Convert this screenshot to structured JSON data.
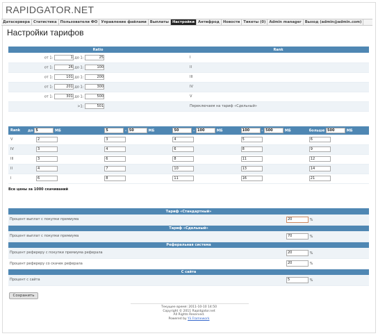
{
  "logo": "RAPIDGATOR.NET",
  "nav": [
    {
      "label": "Датасервера",
      "active": false
    },
    {
      "label": "Статистика",
      "active": false
    },
    {
      "label": "Пользователи ФО",
      "active": false
    },
    {
      "label": "Управление файлами",
      "active": false
    },
    {
      "label": "Выплаты",
      "active": false
    },
    {
      "label": "Настройки",
      "active": true
    },
    {
      "label": "Антифрод",
      "active": false
    },
    {
      "label": "Новости",
      "active": false
    },
    {
      "label": "Тикеты (0)",
      "active": false
    },
    {
      "label": "Admin manager",
      "active": false
    },
    {
      "label": "Выход (admin@admin.com)",
      "active": false
    }
  ],
  "page_title": "Настройки тарифов",
  "ratio": {
    "col_ratio": "Ratio",
    "col_rank": "Rank",
    "from_label": "от 1:",
    "to_label": "до 1:",
    "gt_label": ">1:",
    "rows": [
      {
        "from": "1",
        "to": "25",
        "rank": "I"
      },
      {
        "from": "26",
        "to": "100",
        "rank": "II"
      },
      {
        "from": "101",
        "to": "200",
        "rank": "III"
      },
      {
        "from": "201",
        "to": "300",
        "rank": "IV"
      },
      {
        "from": "301",
        "to": "500",
        "rank": "V"
      }
    ],
    "last_value": "501",
    "last_text": "Переключаем на тариф «Сдельный»"
  },
  "sizes": {
    "rank_label": "Rank",
    "to_label": "до",
    "mb": "МБ",
    "dash": "-",
    "more_label": "больше",
    "ranges": [
      {
        "from": "",
        "to": "5"
      },
      {
        "from": "5",
        "to": "50"
      },
      {
        "from": "50",
        "to": "100"
      },
      {
        "from": "100",
        "to": "500"
      },
      {
        "from": "",
        "to": "500"
      }
    ],
    "rows": [
      {
        "rank": "V",
        "values": [
          "2",
          "3",
          "4",
          "5",
          "6"
        ]
      },
      {
        "rank": "IV",
        "values": [
          "3",
          "4",
          "6",
          "8",
          "9"
        ]
      },
      {
        "rank": "III",
        "values": [
          "3",
          "6",
          "8",
          "11",
          "12"
        ]
      },
      {
        "rank": "II",
        "values": [
          "4",
          "7",
          "10",
          "13",
          "14"
        ]
      },
      {
        "rank": "I",
        "values": [
          "6",
          "8",
          "11",
          "16",
          "21"
        ]
      }
    ]
  },
  "note": "Все цены за 1000 скачиваний",
  "settings": {
    "pct": "%",
    "sections": [
      {
        "title": "Тариф «Стандартный»",
        "rows": [
          {
            "label": "Процент выплат с покупки премиума",
            "value": "20",
            "focus": true
          }
        ]
      },
      {
        "title": "Тариф «Сдельный»",
        "rows": [
          {
            "label": "Процент выплат с покупки премиума",
            "value": "70",
            "focus": false
          }
        ]
      },
      {
        "title": "Реферальная система",
        "rows": [
          {
            "label": "Процент рефереру с покупки премиума реферала",
            "value": "20",
            "focus": false
          },
          {
            "label": "Процент рефереру со скачек реферала",
            "value": "20",
            "focus": false
          }
        ]
      },
      {
        "title": "С сайта",
        "rows": [
          {
            "label": "Процент с сайта",
            "value": "5",
            "focus": false
          }
        ]
      }
    ]
  },
  "save_label": "Сохранить",
  "footer": {
    "time": "Текущее время: 2011-10-10 14:50",
    "copyright": "Copyright © 2011 Rapidgator.net",
    "rights": "All Rights Reserved.",
    "powered_prefix": "Powered by ",
    "powered_link": "Yii Framework"
  }
}
